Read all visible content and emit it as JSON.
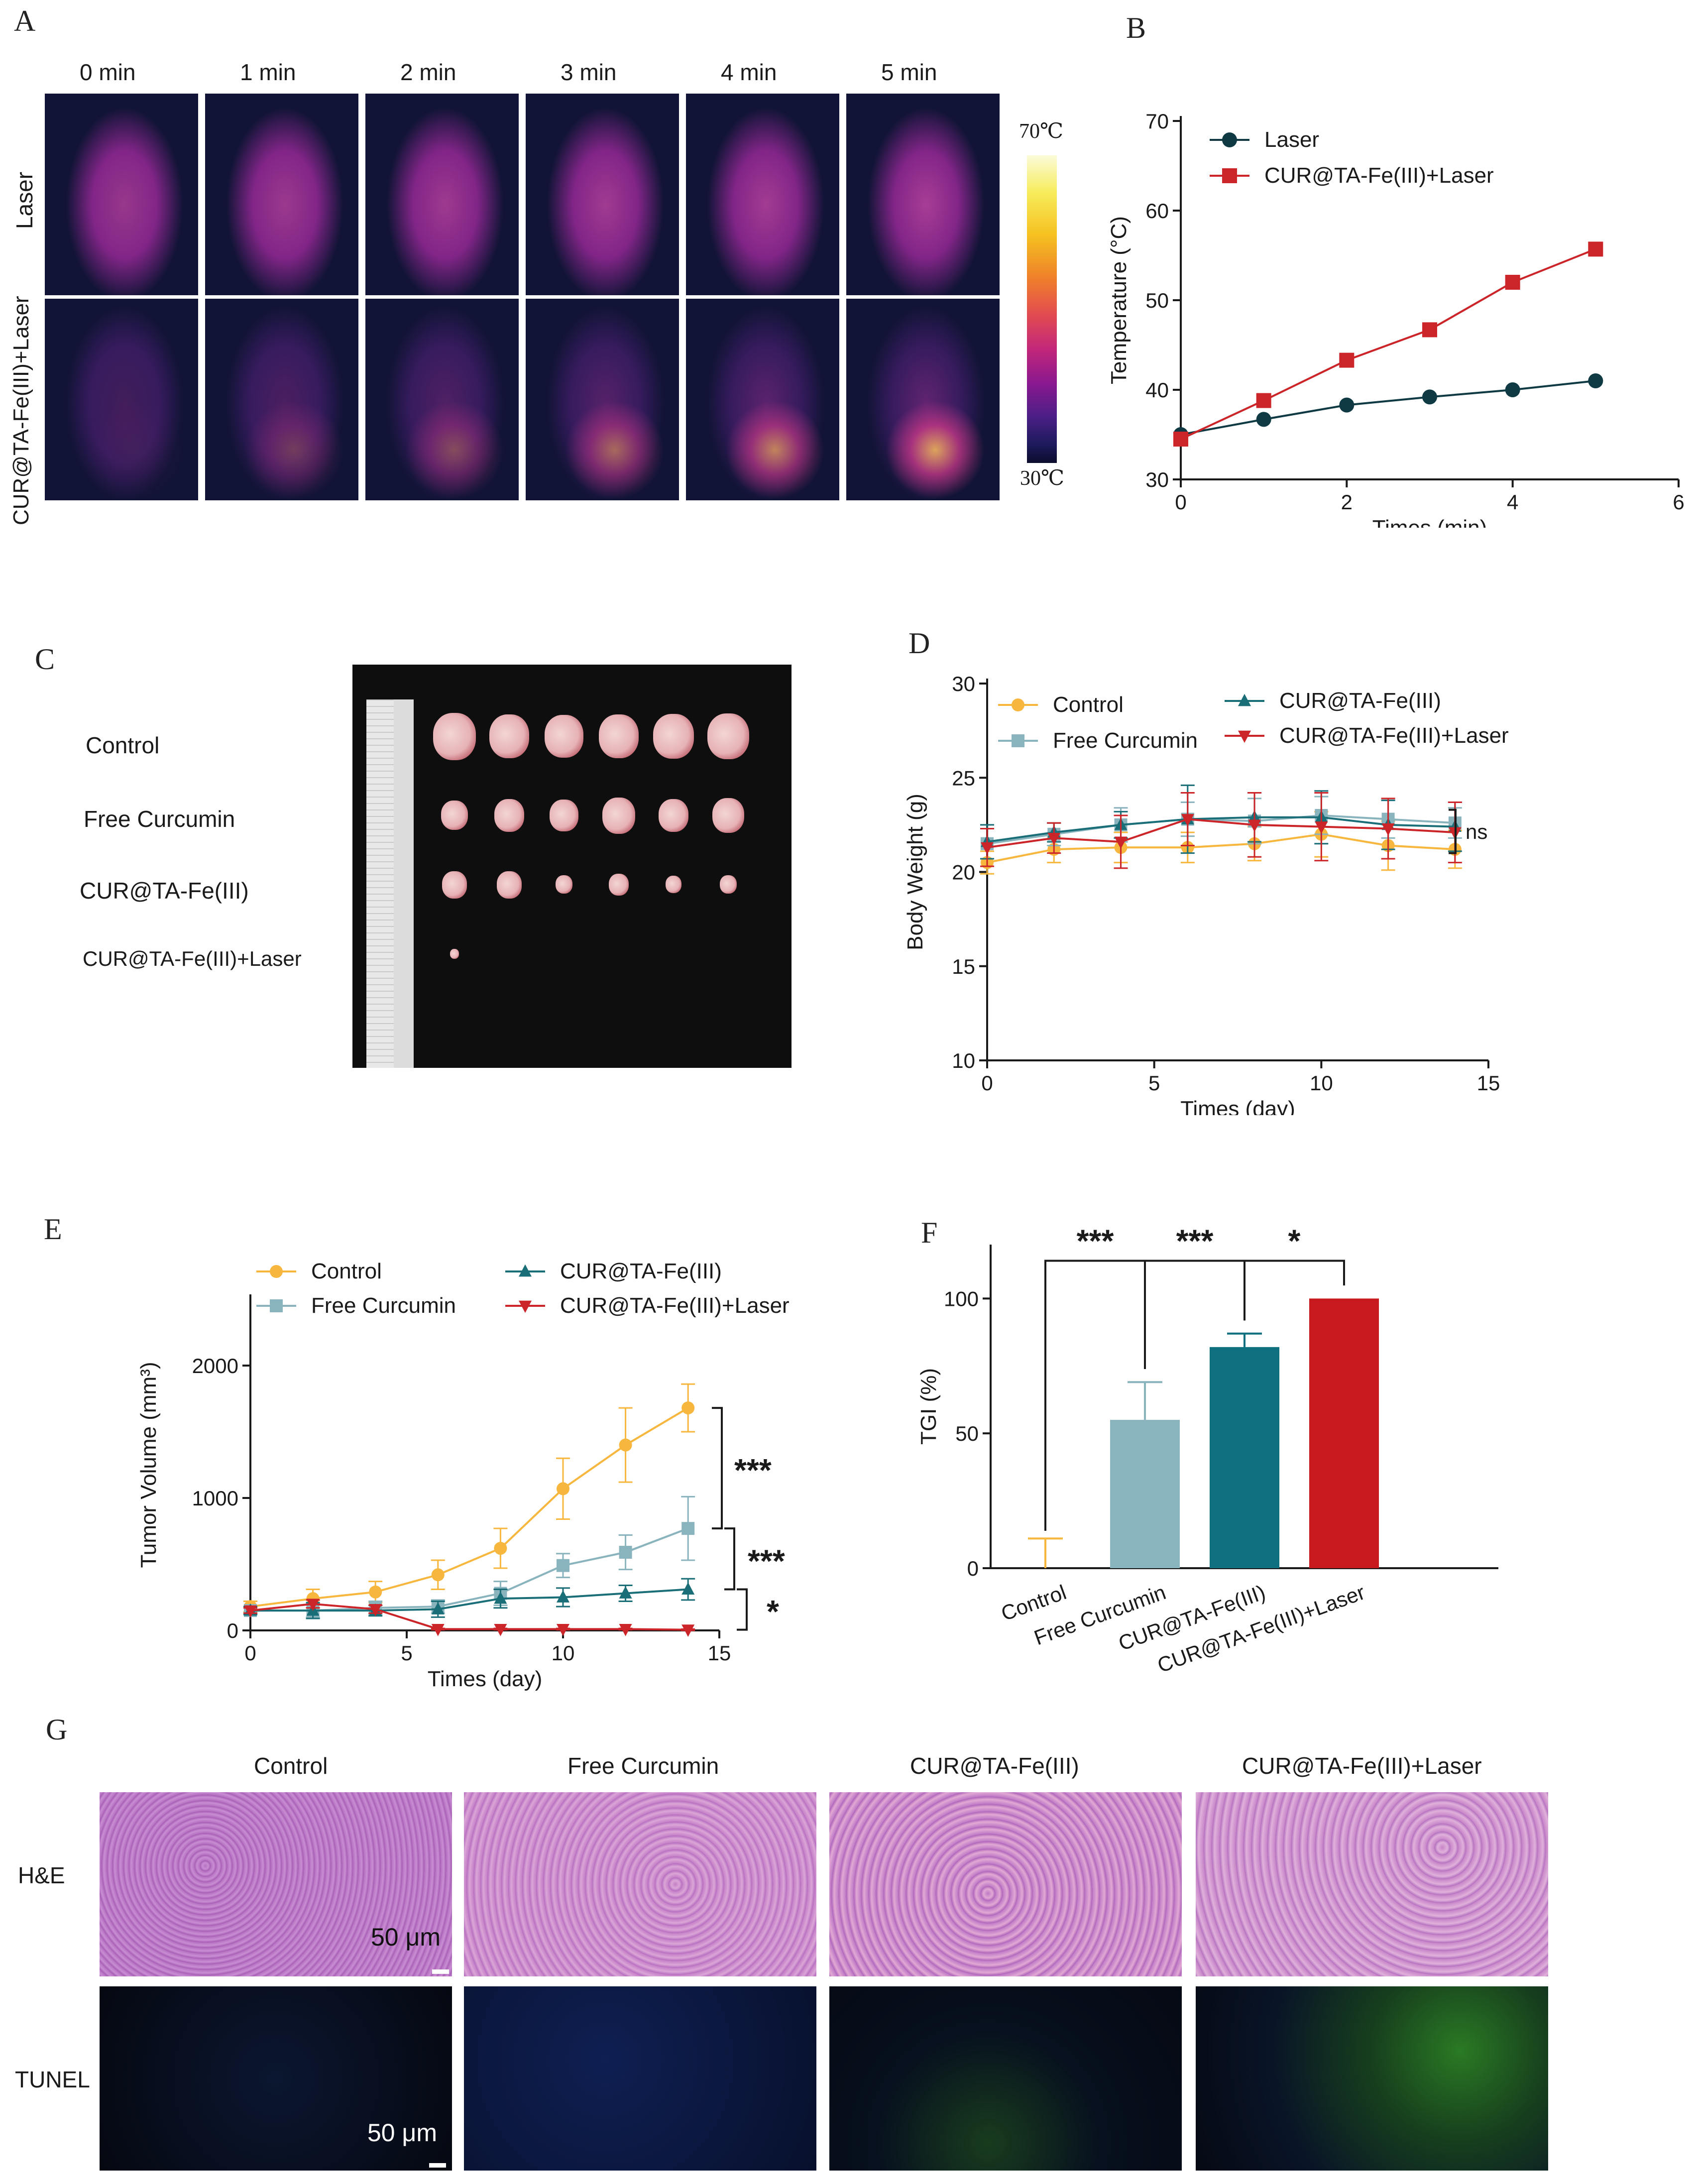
{
  "panels": {
    "a": "A",
    "b": "B",
    "c": "C",
    "d": "D",
    "e": "E",
    "f": "F",
    "g": "G"
  },
  "panel_a": {
    "time_labels": [
      "0 min",
      "1 min",
      "2 min",
      "3 min",
      "4 min",
      "5 min"
    ],
    "row_labels": [
      "Laser",
      "CUR@TA-Fe(III)+Laser"
    ],
    "colorbar_max": "70℃",
    "colorbar_min": "30℃"
  },
  "panel_c": {
    "group_labels": [
      "Control",
      "Free Curcumin",
      "CUR@TA-Fe(III)",
      "CUR@TA-Fe(III)+Laser"
    ]
  },
  "panel_g": {
    "column_labels": [
      "Control",
      "Free Curcumin",
      "CUR@TA-Fe(III)",
      "CUR@TA-Fe(III)+Laser"
    ],
    "row_labels": [
      "H&E",
      "TUNEL"
    ],
    "scale_bar": "50 μm"
  },
  "chart_data": [
    {
      "id": "B",
      "type": "line",
      "xlabel": "Times (min)",
      "ylabel": "Temperature (°C)",
      "xlim": [
        0,
        6
      ],
      "ylim": [
        30,
        70
      ],
      "xticks": [
        0,
        2,
        4,
        6
      ],
      "yticks": [
        30,
        40,
        50,
        60,
        70
      ],
      "x": [
        0,
        1,
        2,
        3,
        4,
        5
      ],
      "series": [
        {
          "name": "Laser",
          "values": [
            35.0,
            36.7,
            38.3,
            39.2,
            40.0,
            41.0
          ],
          "color": "#0f3a44",
          "marker": "circle"
        },
        {
          "name": "CUR@TA-Fe(III)+Laser",
          "values": [
            34.5,
            38.8,
            43.3,
            46.7,
            52.0,
            55.7
          ],
          "color": "#cc2529",
          "marker": "square"
        }
      ]
    },
    {
      "id": "D",
      "type": "line",
      "xlabel": "Times (day)",
      "ylabel": "Body Weight (g)",
      "xlim": [
        0,
        15
      ],
      "ylim": [
        10,
        30
      ],
      "xticks": [
        0,
        5,
        10,
        15
      ],
      "yticks": [
        10,
        15,
        20,
        25,
        30
      ],
      "x": [
        0,
        2,
        4,
        6,
        8,
        10,
        12,
        14
      ],
      "annotation": "ns",
      "series": [
        {
          "name": "Control",
          "values": [
            20.5,
            21.2,
            21.3,
            21.3,
            21.5,
            22.0,
            21.4,
            21.2
          ],
          "error": [
            0.6,
            0.7,
            0.8,
            0.8,
            0.9,
            1.2,
            1.3,
            1.0
          ],
          "color": "#f7b73e",
          "marker": "circle"
        },
        {
          "name": "Free Curcumin",
          "values": [
            21.5,
            22.0,
            22.5,
            22.8,
            22.7,
            23.0,
            22.8,
            22.6
          ],
          "error": [
            0.8,
            0.6,
            0.9,
            0.9,
            1.2,
            1.0,
            1.0,
            0.8
          ],
          "color": "#8ab4bd",
          "marker": "square"
        },
        {
          "name": "CUR@TA-Fe(III)",
          "values": [
            21.6,
            22.1,
            22.5,
            22.8,
            22.9,
            22.9,
            22.5,
            22.4
          ],
          "error": [
            0.9,
            0.5,
            0.7,
            1.8,
            1.3,
            1.4,
            1.3,
            1.3
          ],
          "color": "#1a6e78",
          "marker": "triangle"
        },
        {
          "name": "CUR@TA-Fe(III)+Laser",
          "values": [
            21.3,
            21.8,
            21.6,
            22.8,
            22.5,
            22.4,
            22.3,
            22.1
          ],
          "error": [
            1.0,
            0.8,
            1.4,
            1.4,
            1.7,
            1.8,
            1.6,
            1.6
          ],
          "color": "#cc2529",
          "marker": "triangle-down"
        }
      ]
    },
    {
      "id": "E",
      "type": "line",
      "xlabel": "Times (day)",
      "ylabel": "Tumor Volume (mm³)",
      "xlim": [
        0,
        15
      ],
      "ylim": [
        0,
        2500
      ],
      "xticks": [
        0,
        5,
        10,
        15
      ],
      "yticks": [
        0,
        1000,
        2000
      ],
      "x": [
        0,
        2,
        4,
        6,
        8,
        10,
        12,
        14
      ],
      "significance": [
        "***",
        "***",
        "*"
      ],
      "series": [
        {
          "name": "Control",
          "values": [
            180,
            240,
            290,
            420,
            620,
            1070,
            1400,
            1680
          ],
          "error": [
            40,
            70,
            80,
            110,
            150,
            230,
            280,
            180
          ],
          "color": "#f7b73e",
          "marker": "circle"
        },
        {
          "name": "Free Curcumin",
          "values": [
            150,
            150,
            170,
            180,
            280,
            490,
            590,
            770
          ],
          "error": [
            30,
            50,
            50,
            50,
            90,
            90,
            130,
            240
          ],
          "color": "#8ab4bd",
          "marker": "square"
        },
        {
          "name": "CUR@TA-Fe(III)",
          "values": [
            150,
            150,
            150,
            160,
            240,
            250,
            280,
            310
          ],
          "error": [
            30,
            60,
            40,
            60,
            70,
            70,
            60,
            80
          ],
          "color": "#1a6e78",
          "marker": "triangle"
        },
        {
          "name": "CUR@TA-Fe(III)+Laser",
          "values": [
            150,
            200,
            160,
            10,
            10,
            10,
            10,
            5
          ],
          "error": [
            20,
            30,
            30,
            5,
            5,
            5,
            5,
            5
          ],
          "color": "#cc2529",
          "marker": "triangle-down"
        }
      ]
    },
    {
      "id": "F",
      "type": "bar",
      "ylabel": "TGI (%)",
      "ylim": [
        0,
        120
      ],
      "yticks": [
        0,
        50,
        100
      ],
      "categories": [
        "Control",
        "Free Curcumin",
        "CUR@TA-Fe(III)",
        "CUR@TA-Fe(III)+Laser"
      ],
      "values": [
        0,
        55,
        82,
        100
      ],
      "error": [
        11,
        14,
        5,
        0
      ],
      "colors": [
        "#f7b73e",
        "#8ab4bd",
        "#0f7080",
        "#c8191f"
      ],
      "significance": [
        "***",
        "***",
        "*"
      ]
    }
  ]
}
